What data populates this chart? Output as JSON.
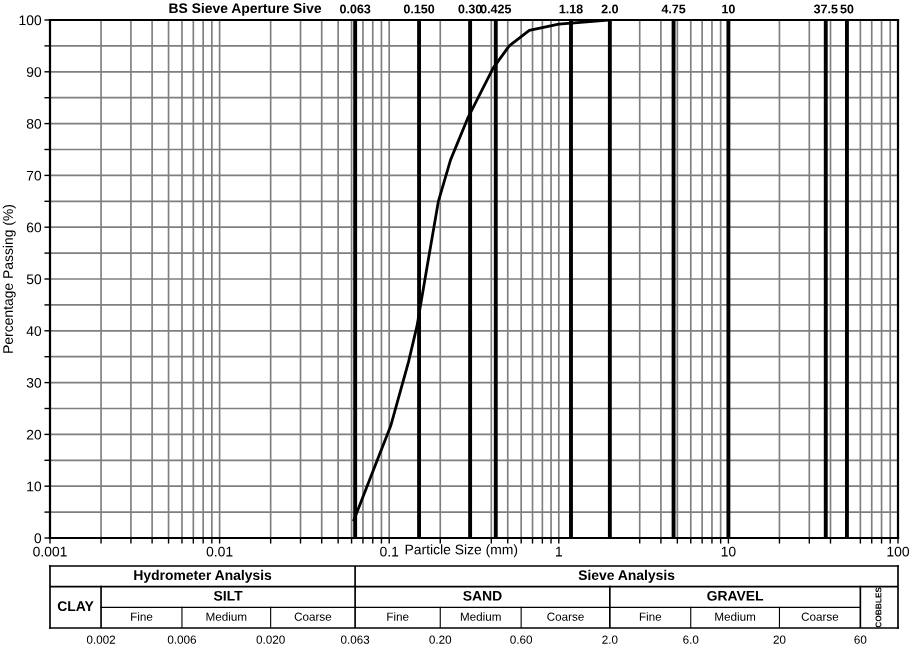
{
  "chart_data": {
    "type": "line",
    "title": "BS Sieve Aperture Sive",
    "xlabel": "Particle Size (mm)",
    "ylabel": "Percentage Passing (%)",
    "log": "x",
    "grid": true,
    "marker": "none",
    "line_style": "solid",
    "xlim": [
      0.001,
      100
    ],
    "ylim": [
      0,
      100
    ],
    "xticks": [
      0.001,
      {
        "value": 0.002,
        "label": null
      },
      {
        "value": 0.003,
        "label": null
      },
      {
        "value": 0.004,
        "label": null
      },
      {
        "value": 0.005,
        "label": null
      },
      {
        "value": 0.006,
        "label": null
      },
      {
        "value": 0.007,
        "label": null
      },
      {
        "value": 0.008,
        "label": null
      },
      {
        "value": 0.009,
        "label": null
      },
      0.01,
      {
        "value": 0.02,
        "label": null
      },
      {
        "value": 0.03,
        "label": null
      },
      {
        "value": 0.04,
        "label": null
      },
      {
        "value": 0.05,
        "label": null
      },
      {
        "value": 0.06,
        "label": null
      },
      {
        "value": 0.07,
        "label": null
      },
      {
        "value": 0.08,
        "label": null
      },
      {
        "value": 0.09,
        "label": null
      },
      0.1,
      {
        "value": 0.2,
        "label": null
      },
      {
        "value": 0.4,
        "label": null
      },
      {
        "value": 0.5,
        "label": null
      },
      {
        "value": 0.6,
        "label": null
      },
      {
        "value": 0.7,
        "label": null
      },
      {
        "value": 0.8,
        "label": null
      },
      {
        "value": 0.9,
        "label": null
      },
      1,
      {
        "value": 3,
        "label": null
      },
      {
        "value": 4,
        "label": null
      },
      {
        "value": 5,
        "label": null
      },
      {
        "value": 6,
        "label": null
      },
      {
        "value": 7,
        "label": null
      },
      {
        "value": 8,
        "label": null
      },
      {
        "value": 9,
        "label": null
      },
      10,
      {
        "value": 20,
        "label": null
      },
      {
        "value": 30,
        "label": null
      },
      {
        "value": 40,
        "label": null
      },
      {
        "value": 60,
        "label": null
      },
      {
        "value": 70,
        "label": null
      },
      {
        "value": 80,
        "label": null
      },
      {
        "value": 90,
        "label": null
      },
      100
    ],
    "yticks": [
      0,
      {
        "value": 5,
        "label": null
      },
      10,
      {
        "value": 15,
        "label": null
      },
      20,
      {
        "value": 25,
        "label": null
      },
      30,
      {
        "value": 35,
        "label": null
      },
      40,
      {
        "value": 45,
        "label": null
      },
      50,
      {
        "value": 55,
        "label": null
      },
      60,
      {
        "value": 65,
        "label": null
      },
      70,
      {
        "value": 75,
        "label": null
      },
      80,
      {
        "value": 85,
        "label": null
      },
      90,
      {
        "value": 95,
        "label": null
      },
      100
    ],
    "series": [
      {
        "color": "#000000",
        "x": [
          0.062,
          0.085,
          0.102,
          0.13,
          0.146,
          0.17,
          0.195,
          0.23,
          0.29,
          0.41,
          0.51,
          0.67,
          1.0,
          1.4,
          2.0
        ],
        "values": [
          3.5,
          15,
          21.6,
          34,
          41,
          53.7,
          65,
          73,
          81,
          90.7,
          95,
          98,
          99.2,
          99.6,
          100
        ]
      }
    ],
    "ref_lines": [
      {
        "axis": "x",
        "value": 0.063,
        "label": "0.063"
      },
      {
        "axis": "x",
        "value": 0.15,
        "label": "0.150"
      },
      {
        "axis": "x",
        "value": 0.3,
        "label": "0.30"
      },
      {
        "axis": "x",
        "value": 0.425,
        "label": "0.425"
      },
      {
        "axis": "x",
        "value": 1.18,
        "label": "1.18"
      },
      {
        "axis": "x",
        "value": 2.0,
        "label": "2.0"
      },
      {
        "axis": "x",
        "value": 4.75,
        "label": "4.75"
      },
      {
        "axis": "x",
        "value": 10,
        "label": "10"
      },
      {
        "axis": "x",
        "value": 37.5,
        "label": "37.5"
      },
      {
        "axis": "x",
        "value": 50,
        "label": "50"
      }
    ],
    "annotations": [
      "0.002",
      "0.006",
      "0.020",
      "0.063",
      "0.20",
      "0.60",
      "2.0",
      "6.0",
      "20",
      "60",
      "Hydrometer Analysis",
      "Sieve Analysis",
      "CLAY",
      "SILT",
      "SAND",
      "GRAVEL",
      "COBBLES",
      "Fine",
      "Medium",
      "Coarse",
      "Fine",
      "Medium",
      "Coarse",
      "Fine",
      "Medium",
      "Coarse"
    ]
  }
}
